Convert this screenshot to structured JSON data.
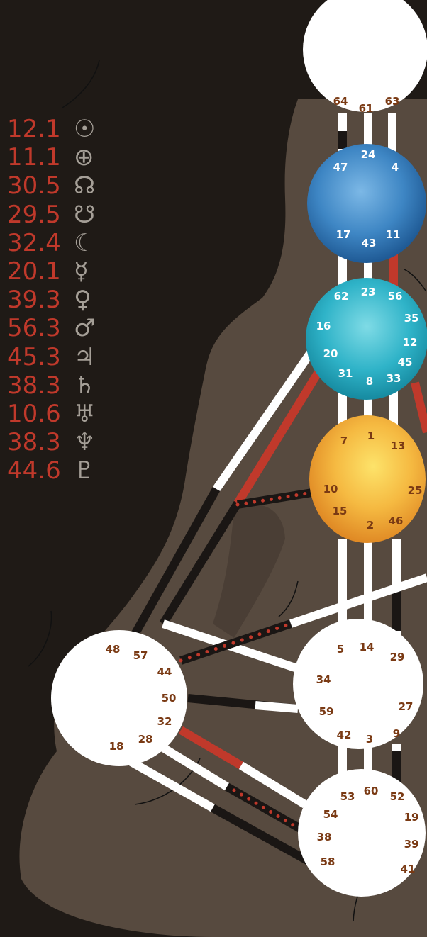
{
  "planets": [
    {
      "value": "12.1",
      "symbol": "☉",
      "icon": "sun-icon"
    },
    {
      "value": "11.1",
      "symbol": "⊕",
      "icon": "earth-icon"
    },
    {
      "value": "30.5",
      "symbol": "☊",
      "icon": "north-node-icon"
    },
    {
      "value": "29.5",
      "symbol": "☋",
      "icon": "south-node-icon"
    },
    {
      "value": "32.4",
      "symbol": "☾",
      "icon": "moon-icon"
    },
    {
      "value": "20.1",
      "symbol": "☿",
      "icon": "mercury-icon"
    },
    {
      "value": "39.3",
      "symbol": "♀",
      "icon": "venus-icon"
    },
    {
      "value": "56.3",
      "symbol": "♂",
      "icon": "mars-icon"
    },
    {
      "value": "45.3",
      "symbol": "♃",
      "icon": "jupiter-icon"
    },
    {
      "value": "38.3",
      "symbol": "♄",
      "icon": "saturn-icon"
    },
    {
      "value": "10.6",
      "symbol": "♅",
      "icon": "uranus-icon"
    },
    {
      "value": "38.3",
      "symbol": "♆",
      "icon": "neptune-icon"
    },
    {
      "value": "44.6",
      "symbol": "♇",
      "icon": "pluto-icon"
    }
  ],
  "centers": {
    "head": {
      "gates": [
        "64",
        "61",
        "63"
      ]
    },
    "ajna": {
      "gates": [
        "47",
        "24",
        "4",
        "17",
        "43",
        "11"
      ]
    },
    "throat": {
      "gates": [
        "62",
        "23",
        "56",
        "16",
        "35",
        "12",
        "20",
        "45",
        "31",
        "8",
        "33"
      ]
    },
    "g": {
      "gates": [
        "7",
        "1",
        "13",
        "10",
        "25",
        "15",
        "2",
        "46"
      ]
    },
    "spleen": {
      "gates": [
        "48",
        "57",
        "44",
        "50",
        "32",
        "28",
        "18"
      ]
    },
    "sacral": {
      "gates": [
        "5",
        "14",
        "29",
        "34",
        "27",
        "59",
        "42",
        "3",
        "9"
      ]
    },
    "root": {
      "gates": [
        "53",
        "60",
        "52",
        "54",
        "19",
        "38",
        "39",
        "58",
        "41"
      ]
    }
  },
  "colors": {
    "background": "#1f1a16",
    "silhouette": "#574a3f",
    "personality_red": "#c0392b",
    "design_black": "#1a1614",
    "gate_text": "#7a3a14",
    "ajna_blue": "#3e86c4",
    "throat_teal": "#2fb3c8",
    "g_orange": "#f2a93a"
  }
}
